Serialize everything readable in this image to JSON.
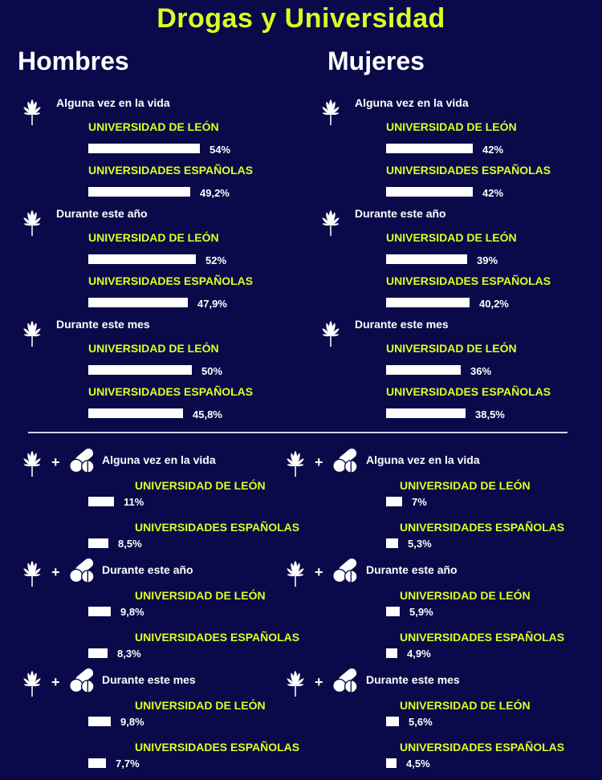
{
  "title": "Drogas y Universidad",
  "genders": [
    "Hombres",
    "Mujeres"
  ],
  "icons": {
    "cannabis": "cannabis-leaf-icon",
    "pills": "pills-icon",
    "plus": "+"
  },
  "colors": {
    "background": "#0a0a4a",
    "accent": "#ddff22",
    "bar": "#ffffff"
  },
  "chart_data": [
    {
      "type": "bar",
      "orientation": "horizontal",
      "substance": "cannabis",
      "groups": [
        "Hombres",
        "Mujeres"
      ],
      "periods": [
        "Alguna vez en la vida",
        "Durante este año",
        "Durante este mes"
      ],
      "series": [
        {
          "name": "UNIVERSIDAD DE LEÓN",
          "labels": {
            "Hombres": [
              "54%",
              "52%",
              "50%"
            ],
            "Mujeres": [
              "42%",
              "39%",
              "36%"
            ]
          },
          "values": {
            "Hombres": [
              54,
              52,
              50
            ],
            "Mujeres": [
              42,
              39,
              36
            ]
          }
        },
        {
          "name": "UNIVERSIDADES ESPAÑOLAS",
          "labels": {
            "Hombres": [
              "49,2%",
              "47,9%",
              "45,8%"
            ],
            "Mujeres": [
              "42%",
              "40,2%",
              "38,5%"
            ]
          },
          "values": {
            "Hombres": [
              49.2,
              47.9,
              45.8
            ],
            "Mujeres": [
              42,
              40.2,
              38.5
            ]
          }
        }
      ]
    },
    {
      "type": "bar",
      "orientation": "horizontal",
      "substance": "cannabis + pills",
      "groups": [
        "Hombres",
        "Mujeres"
      ],
      "periods": [
        "Alguna vez en la vida",
        "Durante este año",
        "Durante este mes"
      ],
      "series": [
        {
          "name": "UNIVERSIDAD DE LEÓN",
          "labels": {
            "Hombres": [
              "11%",
              "9,8%",
              "9,8%"
            ],
            "Mujeres": [
              "7%",
              "5,9%",
              "5,6%"
            ]
          },
          "values": {
            "Hombres": [
              11,
              9.8,
              9.8
            ],
            "Mujeres": [
              7,
              5.9,
              5.6
            ]
          }
        },
        {
          "name": "UNIVERSIDADES ESPAÑOLAS",
          "labels": {
            "Hombres": [
              "8,5%",
              "8,3%",
              "7,7%"
            ],
            "Mujeres": [
              "5,3%",
              "4,9%",
              "4,5%"
            ]
          },
          "values": {
            "Hombres": [
              8.5,
              8.3,
              7.7
            ],
            "Mujeres": [
              5.3,
              4.9,
              4.5
            ]
          }
        }
      ]
    }
  ]
}
